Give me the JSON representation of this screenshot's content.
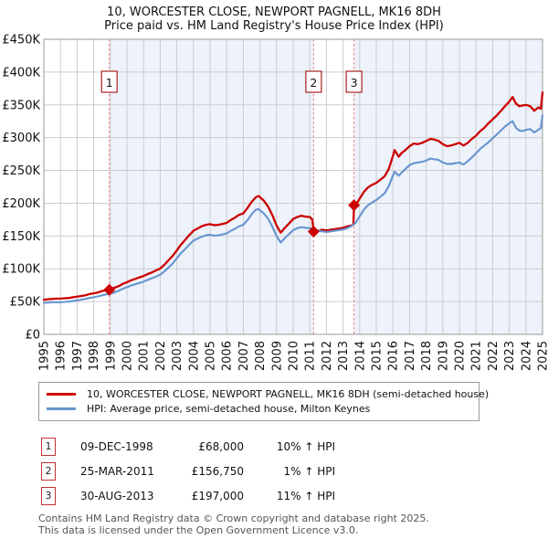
{
  "title": {
    "line1": "10, WORCESTER CLOSE, NEWPORT PAGNELL, MK16 8DH",
    "line2": "Price paid vs. HM Land Registry's House Price Index (HPI)"
  },
  "transactions": [
    {
      "num": "1",
      "date": "09-DEC-1998",
      "price": "£68,000",
      "hpi": "10% ↑ HPI"
    },
    {
      "num": "2",
      "date": "25-MAR-2011",
      "price": "£156,750",
      "hpi": "1% ↑ HPI"
    },
    {
      "num": "3",
      "date": "30-AUG-2013",
      "price": "£197,000",
      "hpi": "11% ↑ HPI"
    }
  ],
  "footer": {
    "line1": "Contains HM Land Registry data © Crown copyright and database right 2025.",
    "line2": "This data is licensed under the Open Government Licence v3.0."
  },
  "chart_data": {
    "type": "line",
    "title": "10, WORCESTER CLOSE, NEWPORT PAGNELL, MK16 8DH — Price paid vs. HPI",
    "x_axis": {
      "min": 1995,
      "max": 2025.3,
      "ticks": [
        1995,
        1996,
        1997,
        1998,
        1999,
        2000,
        2001,
        2002,
        2003,
        2004,
        2005,
        2006,
        2007,
        2008,
        2009,
        2010,
        2011,
        2012,
        2013,
        2014,
        2015,
        2016,
        2017,
        2018,
        2019,
        2020,
        2021,
        2022,
        2023,
        2024,
        2025
      ]
    },
    "y_axis": {
      "min": 0,
      "max": 450000,
      "tick_step": 50000,
      "tick_labels": [
        "£0",
        "£50K",
        "£100K",
        "£150K",
        "£200K",
        "£250K",
        "£300K",
        "£350K",
        "£400K",
        "£450K"
      ]
    },
    "grid": true,
    "legend_position": "bottom",
    "bands": [
      [
        1998.94,
        2011.23
      ],
      [
        2013.66,
        2025.3
      ]
    ],
    "events": [
      {
        "num": "1",
        "t": 1998.94,
        "value": 68000
      },
      {
        "num": "2",
        "t": 2011.23,
        "value": 156750
      },
      {
        "num": "3",
        "t": 2013.66,
        "value": 197000
      }
    ],
    "colors": {
      "band": "#edf2fb",
      "grid": "#cccccc",
      "border": "#999999",
      "event_line": "#f07878",
      "event_box_border": "#b03030",
      "marker": "#cc0000",
      "axis_text": "#111111"
    },
    "series": [
      {
        "name": "10, WORCESTER CLOSE, NEWPORT PAGNELL, MK16 8DH (semi-detached house)",
        "color": "#cc0000",
        "width": 2.3,
        "points": [
          [
            1995.0,
            53000
          ],
          [
            1995.25,
            53500
          ],
          [
            1995.5,
            54000
          ],
          [
            1995.75,
            54500
          ],
          [
            1996.0,
            54500
          ],
          [
            1996.25,
            55000
          ],
          [
            1996.5,
            55500
          ],
          [
            1996.75,
            56500
          ],
          [
            1997.0,
            57500
          ],
          [
            1997.25,
            58500
          ],
          [
            1997.5,
            59500
          ],
          [
            1997.75,
            61500
          ],
          [
            1998.0,
            62500
          ],
          [
            1998.25,
            64000
          ],
          [
            1998.5,
            66000
          ],
          [
            1998.75,
            67500
          ],
          [
            1998.94,
            68000
          ],
          [
            1999.25,
            71000
          ],
          [
            1999.5,
            73500
          ],
          [
            1999.75,
            77000
          ],
          [
            2000.0,
            79500
          ],
          [
            2000.25,
            82500
          ],
          [
            2000.5,
            84500
          ],
          [
            2000.75,
            87000
          ],
          [
            2001.0,
            89000
          ],
          [
            2001.25,
            92000
          ],
          [
            2001.5,
            94500
          ],
          [
            2001.75,
            97500
          ],
          [
            2002.0,
            100500
          ],
          [
            2002.25,
            106000
          ],
          [
            2002.5,
            113000
          ],
          [
            2002.75,
            119500
          ],
          [
            2003.0,
            128000
          ],
          [
            2003.25,
            137000
          ],
          [
            2003.5,
            144000
          ],
          [
            2003.75,
            151500
          ],
          [
            2004.0,
            158000
          ],
          [
            2004.25,
            161500
          ],
          [
            2004.5,
            165000
          ],
          [
            2004.75,
            167000
          ],
          [
            2005.0,
            168000
          ],
          [
            2005.25,
            166500
          ],
          [
            2005.5,
            167000
          ],
          [
            2005.75,
            168500
          ],
          [
            2006.0,
            170000
          ],
          [
            2006.25,
            174500
          ],
          [
            2006.5,
            178000
          ],
          [
            2006.75,
            182500
          ],
          [
            2007.0,
            184500
          ],
          [
            2007.25,
            192500
          ],
          [
            2007.5,
            202000
          ],
          [
            2007.75,
            209000
          ],
          [
            2007.92,
            211000
          ],
          [
            2008.25,
            203500
          ],
          [
            2008.5,
            194500
          ],
          [
            2008.75,
            181500
          ],
          [
            2009.0,
            166000
          ],
          [
            2009.25,
            155000
          ],
          [
            2009.5,
            162500
          ],
          [
            2009.75,
            169000
          ],
          [
            2010.0,
            176000
          ],
          [
            2010.25,
            179000
          ],
          [
            2010.5,
            181000
          ],
          [
            2010.75,
            179500
          ],
          [
            2011.0,
            179000
          ],
          [
            2011.15,
            175000
          ],
          [
            2011.23,
            156750
          ],
          [
            2011.5,
            158000
          ],
          [
            2011.75,
            159500
          ],
          [
            2012.0,
            158500
          ],
          [
            2012.25,
            159500
          ],
          [
            2012.5,
            160500
          ],
          [
            2012.75,
            161500
          ],
          [
            2013.0,
            162500
          ],
          [
            2013.25,
            164500
          ],
          [
            2013.5,
            166000
          ],
          [
            2013.62,
            167000
          ],
          [
            2013.66,
            197000
          ],
          [
            2013.8,
            199000
          ],
          [
            2014.0,
            207000
          ],
          [
            2014.25,
            217000
          ],
          [
            2014.5,
            224000
          ],
          [
            2014.75,
            228000
          ],
          [
            2015.0,
            231000
          ],
          [
            2015.25,
            236000
          ],
          [
            2015.5,
            241000
          ],
          [
            2015.75,
            252000
          ],
          [
            2016.0,
            272000
          ],
          [
            2016.1,
            281000
          ],
          [
            2016.35,
            271000
          ],
          [
            2016.5,
            276000
          ],
          [
            2016.75,
            281000
          ],
          [
            2017.0,
            287000
          ],
          [
            2017.25,
            291000
          ],
          [
            2017.5,
            290000
          ],
          [
            2017.75,
            292000
          ],
          [
            2018.0,
            295000
          ],
          [
            2018.25,
            298000
          ],
          [
            2018.5,
            297000
          ],
          [
            2018.75,
            295000
          ],
          [
            2019.0,
            290000
          ],
          [
            2019.25,
            287000
          ],
          [
            2019.5,
            288000
          ],
          [
            2019.75,
            290000
          ],
          [
            2020.0,
            292000
          ],
          [
            2020.25,
            288000
          ],
          [
            2020.5,
            292000
          ],
          [
            2020.75,
            298000
          ],
          [
            2021.0,
            303000
          ],
          [
            2021.25,
            310000
          ],
          [
            2021.5,
            315000
          ],
          [
            2021.75,
            322000
          ],
          [
            2022.0,
            328000
          ],
          [
            2022.25,
            334000
          ],
          [
            2022.5,
            341000
          ],
          [
            2022.75,
            348000
          ],
          [
            2023.0,
            355000
          ],
          [
            2023.2,
            362000
          ],
          [
            2023.4,
            352000
          ],
          [
            2023.6,
            348000
          ],
          [
            2023.8,
            349000
          ],
          [
            2024.0,
            350000
          ],
          [
            2024.25,
            348000
          ],
          [
            2024.5,
            341000
          ],
          [
            2024.75,
            346000
          ],
          [
            2024.9,
            344000
          ],
          [
            2025.1,
            369000
          ]
        ]
      },
      {
        "name": "HPI: Average price, semi-detached house, Milton Keynes",
        "color": "#6694ce",
        "width": 2.1,
        "points": [
          [
            1995.0,
            48000
          ],
          [
            1995.25,
            48500
          ],
          [
            1995.5,
            49000
          ],
          [
            1995.75,
            49000
          ],
          [
            1996.0,
            49000
          ],
          [
            1996.25,
            49500
          ],
          [
            1996.5,
            50000
          ],
          [
            1996.75,
            51000
          ],
          [
            1997.0,
            52000
          ],
          [
            1997.25,
            53000
          ],
          [
            1997.5,
            54000
          ],
          [
            1997.75,
            55500
          ],
          [
            1998.0,
            56500
          ],
          [
            1998.25,
            58000
          ],
          [
            1998.5,
            59500
          ],
          [
            1998.75,
            61000
          ],
          [
            1998.94,
            61500
          ],
          [
            1999.25,
            64000
          ],
          [
            1999.5,
            66500
          ],
          [
            1999.75,
            69500
          ],
          [
            2000.0,
            72000
          ],
          [
            2000.25,
            74500
          ],
          [
            2000.5,
            76500
          ],
          [
            2000.75,
            78500
          ],
          [
            2001.0,
            80500
          ],
          [
            2001.25,
            83000
          ],
          [
            2001.5,
            85500
          ],
          [
            2001.75,
            88000
          ],
          [
            2002.0,
            91000
          ],
          [
            2002.25,
            96000
          ],
          [
            2002.5,
            102000
          ],
          [
            2002.75,
            108000
          ],
          [
            2003.0,
            116000
          ],
          [
            2003.25,
            124000
          ],
          [
            2003.5,
            130000
          ],
          [
            2003.75,
            137000
          ],
          [
            2004.0,
            143000
          ],
          [
            2004.25,
            146000
          ],
          [
            2004.5,
            149000
          ],
          [
            2004.75,
            151000
          ],
          [
            2005.0,
            152000
          ],
          [
            2005.25,
            150500
          ],
          [
            2005.5,
            151000
          ],
          [
            2005.75,
            152500
          ],
          [
            2006.0,
            154000
          ],
          [
            2006.25,
            158000
          ],
          [
            2006.5,
            161000
          ],
          [
            2006.75,
            165000
          ],
          [
            2007.0,
            167000
          ],
          [
            2007.25,
            174000
          ],
          [
            2007.5,
            183000
          ],
          [
            2007.75,
            190000
          ],
          [
            2007.92,
            191000
          ],
          [
            2008.25,
            184000
          ],
          [
            2008.5,
            176000
          ],
          [
            2008.75,
            164000
          ],
          [
            2009.0,
            150000
          ],
          [
            2009.25,
            140000
          ],
          [
            2009.5,
            147000
          ],
          [
            2009.75,
            153000
          ],
          [
            2010.0,
            159000
          ],
          [
            2010.25,
            162000
          ],
          [
            2010.5,
            163500
          ],
          [
            2010.75,
            162500
          ],
          [
            2011.0,
            162000
          ],
          [
            2011.23,
            160000
          ],
          [
            2011.5,
            158000
          ],
          [
            2011.75,
            157000
          ],
          [
            2012.0,
            156000
          ],
          [
            2012.25,
            157000
          ],
          [
            2012.5,
            158000
          ],
          [
            2012.75,
            159000
          ],
          [
            2013.0,
            160000
          ],
          [
            2013.25,
            162000
          ],
          [
            2013.5,
            165000
          ],
          [
            2013.75,
            170000
          ],
          [
            2014.0,
            180000
          ],
          [
            2014.25,
            190000
          ],
          [
            2014.5,
            197000
          ],
          [
            2014.75,
            201000
          ],
          [
            2015.0,
            205000
          ],
          [
            2015.25,
            210000
          ],
          [
            2015.5,
            215000
          ],
          [
            2015.75,
            226000
          ],
          [
            2016.0,
            242000
          ],
          [
            2016.1,
            248000
          ],
          [
            2016.35,
            242000
          ],
          [
            2016.5,
            246000
          ],
          [
            2016.75,
            252000
          ],
          [
            2017.0,
            258000
          ],
          [
            2017.25,
            261000
          ],
          [
            2017.5,
            262000
          ],
          [
            2017.75,
            263000
          ],
          [
            2018.0,
            265000
          ],
          [
            2018.25,
            268000
          ],
          [
            2018.5,
            267000
          ],
          [
            2018.75,
            266000
          ],
          [
            2019.0,
            262000
          ],
          [
            2019.25,
            260000
          ],
          [
            2019.5,
            260000
          ],
          [
            2019.75,
            261000
          ],
          [
            2020.0,
            262000
          ],
          [
            2020.25,
            259000
          ],
          [
            2020.5,
            264000
          ],
          [
            2020.75,
            270000
          ],
          [
            2021.0,
            276000
          ],
          [
            2021.25,
            283000
          ],
          [
            2021.5,
            288000
          ],
          [
            2021.75,
            293000
          ],
          [
            2022.0,
            299000
          ],
          [
            2022.25,
            305000
          ],
          [
            2022.5,
            311000
          ],
          [
            2022.75,
            317000
          ],
          [
            2023.0,
            322000
          ],
          [
            2023.2,
            325000
          ],
          [
            2023.4,
            315000
          ],
          [
            2023.6,
            311000
          ],
          [
            2023.8,
            310000
          ],
          [
            2024.0,
            312000
          ],
          [
            2024.25,
            313000
          ],
          [
            2024.5,
            308000
          ],
          [
            2024.75,
            312000
          ],
          [
            2024.9,
            315000
          ],
          [
            2025.1,
            334000
          ]
        ]
      }
    ]
  }
}
